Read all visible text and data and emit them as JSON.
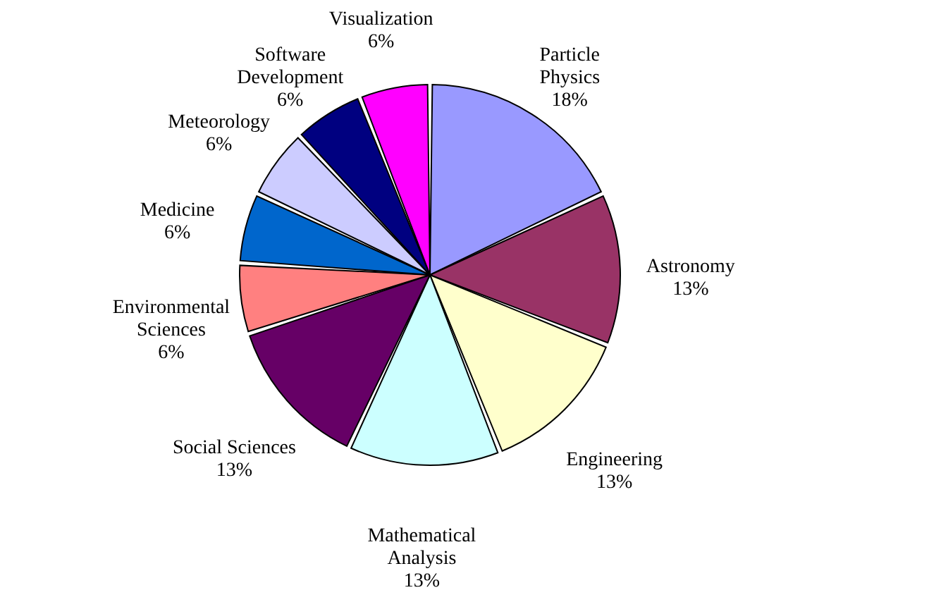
{
  "chart_data": {
    "type": "pie",
    "categories": [
      "Particle Physics",
      "Astronomy",
      "Engineering",
      "Mathematical Analysis",
      "Social Sciences",
      "Environmental Sciences",
      "Medicine",
      "Meteorology",
      "Software Development",
      "Visualization"
    ],
    "values": [
      18,
      13,
      13,
      13,
      13,
      6,
      6,
      6,
      6,
      6
    ],
    "value_labels": [
      "18%",
      "13%",
      "13%",
      "13%",
      "13%",
      "6%",
      "6%",
      "6%",
      "6%",
      "6%"
    ],
    "colors": [
      "#9999ff",
      "#993366",
      "#ffffcc",
      "#ccffff",
      "#660066",
      "#ff8080",
      "#0066cc",
      "#ccccff",
      "#000080",
      "#ff00ff"
    ],
    "legend": false
  }
}
